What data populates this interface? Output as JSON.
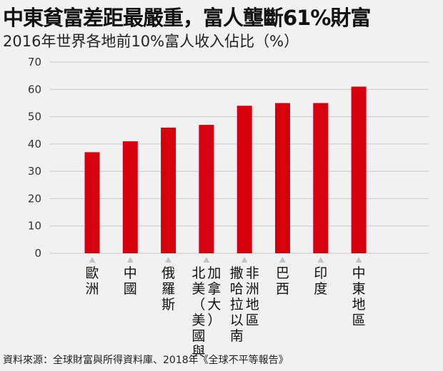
{
  "header": {
    "title": "中東貧富差距最嚴重，富人壟斷61%財富",
    "subtitle": "2016年世界各地前10%富人收入佔比（%）"
  },
  "footer": {
    "source": "資料來源：全球財富與所得資料庫、2018年《全球不平等報告》"
  },
  "chart_data": {
    "type": "bar",
    "title": "中東貧富差距最嚴重，富人壟斷61%財富",
    "subtitle": "2016年世界各地前10%富人收入佔比（%）",
    "categories": [
      "歐洲",
      "中國",
      "俄羅斯",
      "北美（美國與加拿大）",
      "撒哈拉以南非洲地區",
      "巴西",
      "印度",
      "中東地區"
    ],
    "category_columns": [
      [
        "歐洲"
      ],
      [
        "中國"
      ],
      [
        "俄羅斯"
      ],
      [
        "北美（美國與",
        "加拿大）"
      ],
      [
        "撒哈拉以南",
        "非洲地區"
      ],
      [
        "巴西"
      ],
      [
        "印度"
      ],
      [
        "中東地區"
      ]
    ],
    "values": [
      37,
      41,
      46,
      47,
      54,
      55,
      55,
      61
    ],
    "yticks": [
      0,
      10,
      20,
      30,
      40,
      50,
      60,
      70
    ],
    "ylim": [
      0,
      70
    ],
    "xlabel": "",
    "ylabel": "",
    "grid": true,
    "legend": "none",
    "colors": {
      "bar": "#d7000f",
      "grid": "#c8c8c8",
      "marker": "#c4c4c4",
      "background": "#f1f1f1"
    }
  }
}
